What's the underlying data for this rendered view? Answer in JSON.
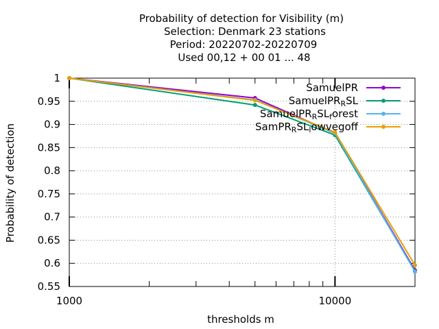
{
  "chart_data": {
    "type": "line",
    "title_lines": [
      "Probability of detection  for Visibility (m)",
      "Selection: Denmark     23 stations",
      "Period: 20220702-20220709",
      "Used  00,12  + 00 01 ... 48"
    ],
    "xlabel": "thresholds m",
    "ylabel": "Probability of detection",
    "x_scale": "log",
    "xlim": [
      1000,
      20000
    ],
    "ylim": [
      0.55,
      1.0
    ],
    "x_ticks": [
      1000,
      10000
    ],
    "x_tick_labels": [
      "1000",
      "10000"
    ],
    "y_ticks": [
      0.55,
      0.6,
      0.65,
      0.7,
      0.75,
      0.8,
      0.85,
      0.9,
      0.95,
      1.0
    ],
    "y_tick_labels": [
      "0.55",
      "0.6",
      "0.65",
      "0.7",
      "0.75",
      "0.8",
      "0.85",
      "0.9",
      "0.95",
      "1"
    ],
    "grid": true,
    "legend_position": "top-right",
    "x": [
      1000,
      5000,
      10000,
      20000
    ],
    "series": [
      {
        "name": "SamuelPR",
        "name_parts": [
          [
            "SamuelPR",
            ""
          ]
        ],
        "color": "#9400d3",
        "values": [
          1.0,
          0.957,
          0.881,
          0.585
        ]
      },
      {
        "name": "SamuelPR_RSL",
        "name_parts": [
          [
            "SamuelPR",
            ""
          ],
          [
            "R",
            "sub"
          ],
          [
            "SL",
            ""
          ]
        ],
        "color": "#009e73",
        "values": [
          1.0,
          0.942,
          0.877,
          0.583
        ]
      },
      {
        "name": "SamuelPR_RSL_forest",
        "name_parts": [
          [
            "SamuelPR",
            ""
          ],
          [
            "R",
            "sub"
          ],
          [
            "SL",
            ""
          ],
          [
            "f",
            "sub"
          ],
          [
            "orest",
            ""
          ]
        ],
        "color": "#56b4e9",
        "values": [
          1.0,
          0.953,
          0.881,
          0.582
        ]
      },
      {
        "name": "SamPR_RSL_lowvegoff",
        "name_parts": [
          [
            "SamPR",
            ""
          ],
          [
            "R",
            "sub"
          ],
          [
            "SL",
            ""
          ],
          [
            "l",
            "sub"
          ],
          [
            "owvegoff",
            ""
          ]
        ],
        "color": "#e69f00",
        "values": [
          1.0,
          0.952,
          0.883,
          0.596
        ]
      }
    ]
  }
}
